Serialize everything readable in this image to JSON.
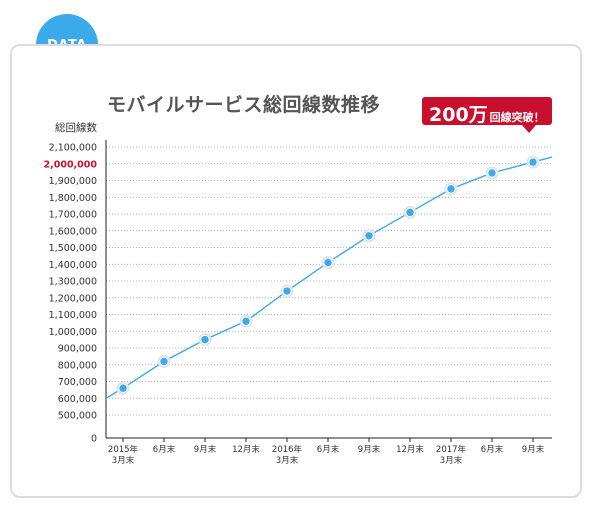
{
  "badge": {
    "label": "DATA",
    "color": "#3ba9ea"
  },
  "callout": {
    "big": "200万",
    "small": "回線突破！",
    "color": "#c8102e"
  },
  "chart_data": {
    "type": "line",
    "title": "モバイルサービス総回線数推移",
    "ylabel": "総回線数",
    "ylim": [
      0,
      2100000
    ],
    "y_ticks": [
      {
        "value": 2100000,
        "label": "2,100,000"
      },
      {
        "value": 2000000,
        "label": "2,000,000",
        "highlight": true
      },
      {
        "value": 1900000,
        "label": "1,900,000"
      },
      {
        "value": 1800000,
        "label": "1,800,000"
      },
      {
        "value": 1700000,
        "label": "1,700,000"
      },
      {
        "value": 1600000,
        "label": "1,600,000"
      },
      {
        "value": 1500000,
        "label": "1,500,000"
      },
      {
        "value": 1400000,
        "label": "1,400,000"
      },
      {
        "value": 1300000,
        "label": "1,300,000"
      },
      {
        "value": 1200000,
        "label": "1,200,000"
      },
      {
        "value": 1100000,
        "label": "1,100,000"
      },
      {
        "value": 1000000,
        "label": "1,000,000"
      },
      {
        "value": 900000,
        "label": "900,000"
      },
      {
        "value": 800000,
        "label": "800,000"
      },
      {
        "value": 700000,
        "label": "700,000"
      },
      {
        "value": 600000,
        "label": "600,000"
      },
      {
        "value": 500000,
        "label": "500,000"
      },
      {
        "value": 0,
        "label": "0"
      }
    ],
    "categories": [
      [
        "2015年",
        "3月末"
      ],
      [
        "6月末"
      ],
      [
        "9月末"
      ],
      [
        "12月末"
      ],
      [
        "2016年",
        "3月末"
      ],
      [
        "6月末"
      ],
      [
        "9月末"
      ],
      [
        "12月末"
      ],
      [
        "2017年",
        "3月末"
      ],
      [
        "6月末"
      ],
      [
        "9月末"
      ]
    ],
    "values": [
      660000,
      820000,
      950000,
      1060000,
      1240000,
      1410000,
      1570000,
      1710000,
      1850000,
      1945000,
      2010000
    ],
    "line_start_value": 600000,
    "line_end_value": 2040000,
    "line_color": "#3ba9ea",
    "highlight_color": "#c8102e",
    "grid": true
  }
}
